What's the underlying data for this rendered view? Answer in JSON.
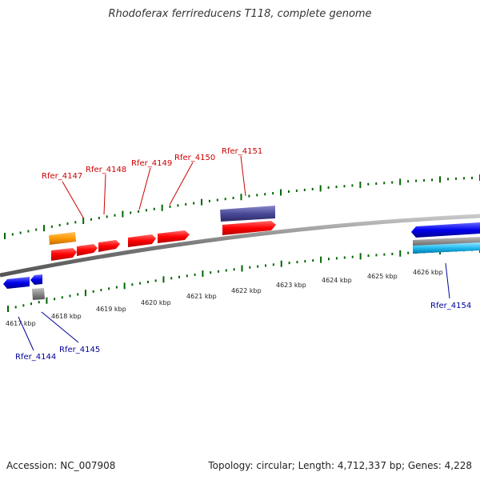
{
  "title": "Rhodoferax ferrireducens T118, complete genome",
  "footer": {
    "accession": "Accession: NC_007908",
    "topology": "Topology: circular; Length: 4,712,337 bp; Genes: 4,228"
  },
  "ruler": {
    "ticks": [
      "4617 kbp",
      "4618 kbp",
      "4619 kbp",
      "4620 kbp",
      "4621 kbp",
      "4622 kbp",
      "4623 kbp",
      "4624 kbp",
      "4625 kbp",
      "4626 kbp"
    ]
  },
  "gene_labels": {
    "top": [
      "Rfer_4147",
      "Rfer_4148",
      "Rfer_4149",
      "Rfer_4150",
      "Rfer_4151"
    ],
    "bottom": [
      "Rfer_4144",
      "Rfer_4145",
      "Rfer_4154"
    ]
  },
  "colors": {
    "cds_forward": "#ff0000",
    "cds_reverse": "#0000ee",
    "orange_feature": "#ff9900",
    "purple_feature": "#4a4a9a",
    "gray_feature": "#777777",
    "cyan_feature": "#22bbee",
    "tick_green": "#006600",
    "label_red": "#cc0000",
    "label_blue": "#000099"
  }
}
